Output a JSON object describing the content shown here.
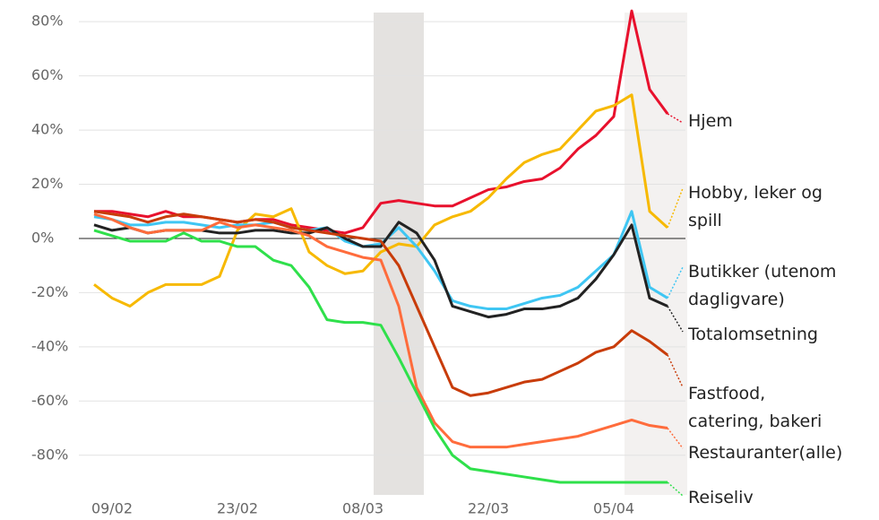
{
  "chart_data": {
    "type": "line",
    "categories": [
      null,
      "09/02",
      null,
      null,
      null,
      null,
      null,
      null,
      "23/02",
      null,
      null,
      null,
      null,
      null,
      null,
      "08/03",
      null,
      null,
      null,
      null,
      null,
      null,
      "22/03",
      null,
      null,
      null,
      null,
      null,
      null,
      "05/04",
      null,
      null,
      null
    ],
    "series": [
      {
        "name": "Hjem",
        "color": "#e8112d",
        "values": [
          10,
          10,
          9,
          8,
          10,
          8,
          8,
          7,
          6,
          7,
          7,
          5,
          4,
          3,
          2,
          4,
          13,
          14,
          13,
          12,
          12,
          15,
          18,
          19,
          21,
          22,
          26,
          33,
          38,
          45,
          84,
          55,
          46
        ]
      },
      {
        "name": "Hobby, leker og\nspill",
        "color": "#f7b900",
        "values": [
          -17,
          -22,
          -25,
          -20,
          -17,
          -17,
          -17,
          -14,
          3,
          9,
          8,
          11,
          -5,
          -10,
          -13,
          -12,
          -5,
          -2,
          -3,
          5,
          8,
          10,
          15,
          22,
          28,
          31,
          33,
          40,
          47,
          49,
          53,
          10,
          4
        ]
      },
      {
        "name": "Butikker (utenom\ndagligvare)",
        "color": "#3fc6f3",
        "values": [
          8,
          7,
          5,
          5,
          6,
          6,
          5,
          4,
          5,
          5,
          6,
          4,
          3,
          4,
          -1,
          -3,
          -2,
          4,
          -3,
          -12,
          -23,
          -25,
          -26,
          -26,
          -24,
          -22,
          -21,
          -18,
          -12,
          -6,
          10,
          -18,
          -22
        ]
      },
      {
        "name": "Totalomsetning",
        "color": "#222222",
        "values": [
          5,
          3,
          4,
          2,
          3,
          3,
          3,
          2,
          2,
          3,
          3,
          2,
          2,
          4,
          0,
          -3,
          -3,
          6,
          2,
          -8,
          -25,
          -27,
          -29,
          -28,
          -26,
          -26,
          -25,
          -22,
          -15,
          -6,
          5,
          -22,
          -25
        ]
      },
      {
        "name": "Fastfood,\ncatering, bakeri",
        "color": "#c83c0a",
        "values": [
          10,
          9,
          8,
          6,
          8,
          9,
          8,
          7,
          6,
          7,
          6,
          4,
          3,
          2,
          1,
          0,
          -1,
          -10,
          -25,
          -40,
          -55,
          -58,
          -57,
          -55,
          -53,
          -52,
          -49,
          -46,
          -42,
          -40,
          -34,
          -38,
          -43
        ]
      },
      {
        "name": "Restauranter(alle)",
        "color": "#ff6c3c",
        "values": [
          9,
          7,
          4,
          2,
          3,
          3,
          3,
          6,
          4,
          5,
          4,
          3,
          1,
          -3,
          -5,
          -7,
          -8,
          -25,
          -55,
          -68,
          -75,
          -77,
          -77,
          -77,
          -76,
          -75,
          -74,
          -73,
          -71,
          -69,
          -67,
          -69,
          -70
        ]
      },
      {
        "name": "Reiseliv",
        "color": "#2fe04b",
        "values": [
          3,
          1,
          -1,
          -1,
          -1,
          2,
          -1,
          -1,
          -3,
          -3,
          -8,
          -10,
          -18,
          -30,
          -31,
          -31,
          -32,
          -44,
          -57,
          -70,
          -80,
          -85,
          -86,
          -87,
          -88,
          -89,
          -90,
          -90,
          -90,
          -90,
          -90,
          -90,
          -90
        ]
      }
    ],
    "ylim": [
      -91,
      88
    ],
    "yticks": [
      {
        "value": -80,
        "label": "-80%"
      },
      {
        "value": -60,
        "label": "-60%"
      },
      {
        "value": -40,
        "label": "-40%"
      },
      {
        "value": -20,
        "label": "-20%"
      },
      {
        "value": 0,
        "label": "0%"
      },
      {
        "value": 20,
        "label": "20%"
      },
      {
        "value": 40,
        "label": "40%"
      },
      {
        "value": 60,
        "label": "60%"
      },
      {
        "value": 80,
        "label": "80%"
      }
    ],
    "grid": true
  }
}
